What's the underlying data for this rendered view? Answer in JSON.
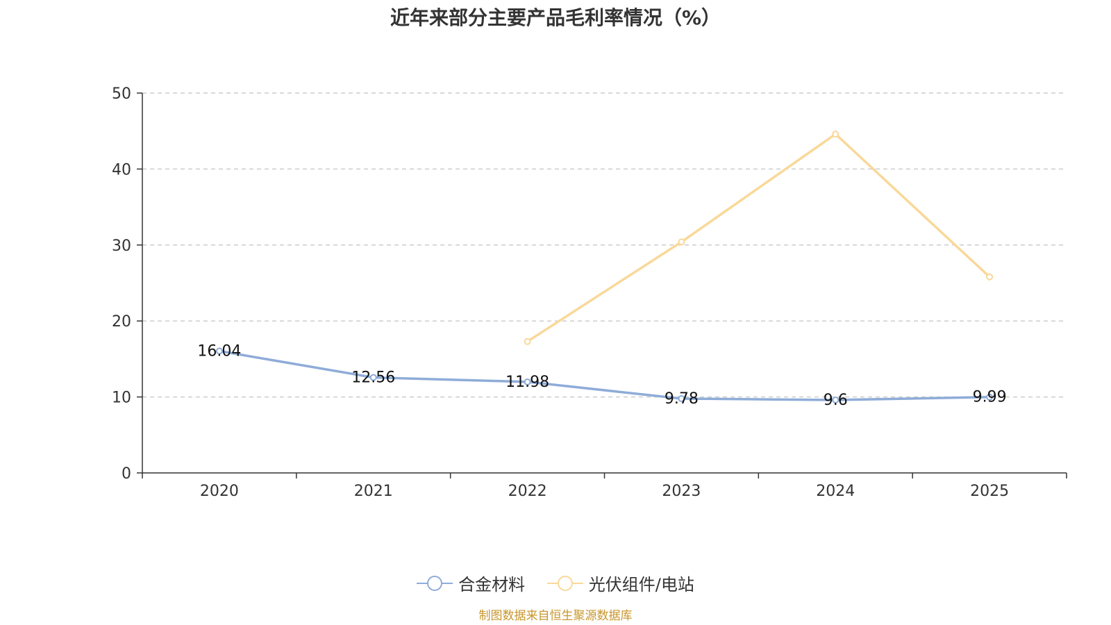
{
  "colors": {
    "series_alloy": "#8eacd8",
    "series_pv": "#f9d899",
    "axis": "#333333",
    "grid": "#cccccc",
    "source": "#c8962c"
  },
  "chart_data": {
    "type": "line",
    "title": "近年来部分主要产品毛利率情况（%）",
    "categories": [
      "2020",
      "2021",
      "2022",
      "2023",
      "2024",
      "2025"
    ],
    "ylim": [
      0,
      50
    ],
    "yticks": [
      0,
      10,
      20,
      30,
      40,
      50
    ],
    "grid": true,
    "legend_position": "bottom",
    "series": [
      {
        "name": "合金材料",
        "values": [
          16.04,
          12.56,
          11.98,
          9.78,
          9.6,
          9.99
        ],
        "labels": [
          "16.04",
          "12.56",
          "11.98",
          "9.78",
          "9.6",
          "9.99"
        ],
        "show_labels": true
      },
      {
        "name": "光伏组件/电站",
        "values": [
          null,
          null,
          17.3,
          30.4,
          44.6,
          25.8
        ],
        "show_labels": false
      }
    ],
    "source": "制图数据来自恒生聚源数据库"
  }
}
